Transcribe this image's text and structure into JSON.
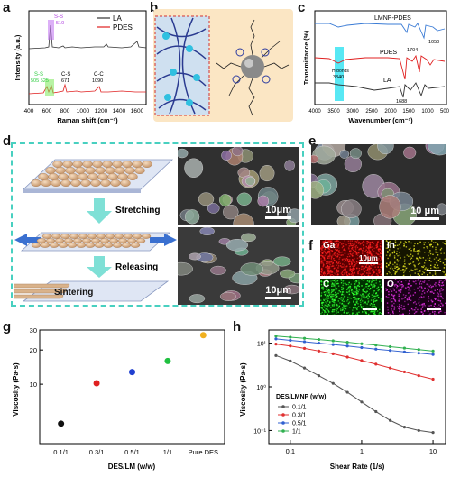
{
  "panels": {
    "a": {
      "label": "a"
    },
    "b": {
      "label": "b"
    },
    "c": {
      "label": "c"
    },
    "d": {
      "label": "d",
      "stretching": "Stretching",
      "releasing": "Releasing",
      "sintering": "Sintering",
      "scalebar": "10μm"
    },
    "e": {
      "label": "e",
      "scalebar": "10 μm"
    },
    "f": {
      "label": "f",
      "maps": [
        "Ga",
        "In",
        "C",
        "O"
      ],
      "scalebar": "10μm"
    },
    "g": {
      "label": "g"
    },
    "h": {
      "label": "h"
    }
  },
  "chart_data": [
    {
      "panel": "a",
      "type": "line",
      "xlabel": "Raman shift (cm⁻¹)",
      "ylabel": "Intensity (a.u.)",
      "xlim": [
        400,
        1700
      ],
      "xticks": [
        "400",
        "600",
        "800",
        "1000",
        "1200",
        "1400",
        "1600"
      ],
      "series": [
        {
          "name": "LA",
          "color": "#333333"
        },
        {
          "name": "PDES",
          "color": "#e02020"
        }
      ],
      "annotations": [
        {
          "text": "S-S",
          "sub": "510",
          "x": 510,
          "series": "LA",
          "color": "#b040e0"
        },
        {
          "text": "S-S",
          "sub": "505 525",
          "x": 515,
          "series": "PDES",
          "color": "#2ecc40"
        },
        {
          "text": "C-S",
          "sub": "671",
          "x": 671,
          "series": "PDES"
        },
        {
          "text": "C-C",
          "sub": "1090",
          "x": 1090,
          "series": "PDES"
        }
      ]
    },
    {
      "panel": "c",
      "type": "line",
      "xlabel": "Wavenumber (cm⁻¹)",
      "ylabel": "Transmittance (%)",
      "xlim": [
        4000,
        500
      ],
      "xticks": [
        "4000",
        "3500",
        "3000",
        "2500",
        "2000",
        "1500",
        "1000",
        "500"
      ],
      "series": [
        {
          "name": "LMNP-PDES",
          "color": "#3a7bd5"
        },
        {
          "name": "PDES",
          "color": "#e02020"
        },
        {
          "name": "LA",
          "color": "#333333"
        }
      ],
      "annotations": [
        {
          "text": "H-bonds",
          "sub": "3340",
          "x": 3340
        },
        {
          "text": "1704",
          "x": 1704
        },
        {
          "text": "1050",
          "x": 1050
        },
        {
          "text": "1688",
          "x": 1688
        }
      ]
    },
    {
      "panel": "g",
      "type": "scatter",
      "xlabel": "DES/LM (w/w)",
      "ylabel": "Viscosity (Pa·s)",
      "yscale": "log",
      "ylim": [
        3,
        30
      ],
      "yticks": [
        "10",
        "20",
        "30"
      ],
      "categories": [
        "0.1/1",
        "0.3/1",
        "0.5/1",
        "1/1",
        "Pure DES"
      ],
      "values": [
        4.5,
        10.2,
        12.8,
        16.0,
        27.0
      ],
      "colors": [
        "#111111",
        "#e02020",
        "#2040d0",
        "#20c040",
        "#f0b020"
      ]
    },
    {
      "panel": "h",
      "type": "line",
      "xlabel": "Shear Rate (1/s)",
      "ylabel": "Viscosity (Pa·s)",
      "xscale": "log",
      "yscale": "log",
      "xlim": [
        0.05,
        15
      ],
      "ylim": [
        0.05,
        20
      ],
      "xticks": [
        "0.1",
        "1",
        "10"
      ],
      "yticks": [
        "10¹",
        "10⁰",
        "10⁻¹"
      ],
      "legend_title": "DES/LMNP (w/w)",
      "legend": "bottom-left",
      "x": [
        0.063,
        0.1,
        0.158,
        0.251,
        0.398,
        0.631,
        1.0,
        1.585,
        2.512,
        3.981,
        6.31,
        10.0
      ],
      "series": [
        {
          "name": "0.1/1",
          "color": "#555555",
          "values": [
            5.2,
            3.9,
            2.7,
            1.8,
            1.2,
            0.75,
            0.45,
            0.27,
            0.17,
            0.12,
            0.1,
            0.09
          ]
        },
        {
          "name": "0.3/1",
          "color": "#e03030",
          "values": [
            9.5,
            8.6,
            7.6,
            6.6,
            5.7,
            4.8,
            4.0,
            3.3,
            2.7,
            2.2,
            1.8,
            1.5
          ]
        },
        {
          "name": "0.5/1",
          "color": "#3060d0",
          "values": [
            12.5,
            11.6,
            10.8,
            10.0,
            9.3,
            8.6,
            7.9,
            7.3,
            6.8,
            6.3,
            5.9,
            5.5
          ]
        },
        {
          "name": "1/1",
          "color": "#30b050",
          "values": [
            14.5,
            13.7,
            12.9,
            12.1,
            11.3,
            10.5,
            9.7,
            9.0,
            8.3,
            7.7,
            7.1,
            6.6
          ]
        }
      ]
    }
  ]
}
